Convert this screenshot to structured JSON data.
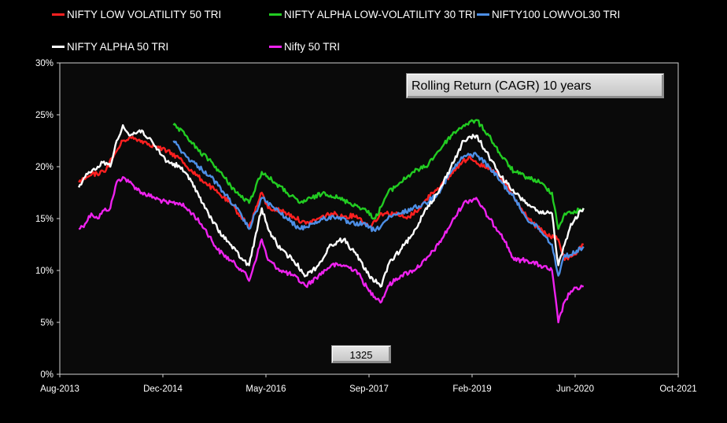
{
  "legend": [
    {
      "label": "NIFTY LOW VOLATILITY 50 TRI",
      "color": "#ff2020"
    },
    {
      "label": "NIFTY ALPHA LOW-VOLATILITY 30 TRI",
      "color": "#22cc22"
    },
    {
      "label": "NIFTY100 LOWVOL30 TRI",
      "color": "#4d8fe6"
    },
    {
      "label": "NIFTY ALPHA 50 TRI",
      "color": "#ffffff"
    },
    {
      "label": "Nifty 50 TRI",
      "color": "#ee22ee"
    }
  ],
  "title_box": "Rolling Return (CAGR) 10 years",
  "counter_box": "1325",
  "chart_data": {
    "type": "line",
    "title": "Rolling Return (CAGR) 10 years",
    "xlabel": "",
    "ylabel": "",
    "x_ticks": [
      "Aug-2013",
      "Dec-2014",
      "May-2016",
      "Sep-2017",
      "Feb-2019",
      "Jun-2020",
      "Oct-2021"
    ],
    "x_range": [
      "2013-08",
      "2021-10"
    ],
    "y_ticks": [
      "0%",
      "5%",
      "10%",
      "15%",
      "20%",
      "25%",
      "30%"
    ],
    "ylim": [
      0,
      30
    ],
    "grid": false,
    "legend_position": "top",
    "series": [
      {
        "name": "NIFTY LOW VOLATILITY 50 TRI",
        "color": "#ff2020",
        "x": [
          "2013-11",
          "2013-12",
          "2014-01",
          "2014-03",
          "2014-05",
          "2014-06",
          "2014-07",
          "2014-09",
          "2014-11",
          "2015-01",
          "2015-03",
          "2015-05",
          "2015-07",
          "2015-09",
          "2015-11",
          "2016-01",
          "2016-02",
          "2016-04",
          "2016-05",
          "2016-07",
          "2016-09",
          "2016-11",
          "2017-01",
          "2017-03",
          "2017-05",
          "2017-07",
          "2017-09",
          "2017-11",
          "2018-01",
          "2018-03",
          "2018-05",
          "2018-07",
          "2018-09",
          "2018-11",
          "2019-01",
          "2019-03",
          "2019-05",
          "2019-07",
          "2019-09",
          "2019-11",
          "2020-01",
          "2020-03",
          "2020-04",
          "2020-06",
          "2020-07"
        ],
        "y": [
          18.5,
          18.8,
          19.2,
          19.5,
          21.5,
          22.5,
          22.8,
          22.5,
          22.0,
          21.5,
          20.8,
          19.5,
          18.5,
          17.5,
          16.5,
          15.0,
          14.2,
          17.5,
          16.0,
          15.8,
          15.2,
          14.5,
          15.0,
          15.5,
          15.2,
          15.3,
          14.2,
          15.5,
          15.5,
          15.0,
          16.0,
          17.5,
          18.5,
          20.0,
          21.0,
          20.0,
          19.5,
          18.0,
          16.0,
          14.5,
          13.5,
          13.0,
          11.0,
          11.8,
          12.5
        ]
      },
      {
        "name": "NIFTY ALPHA LOW-VOLATILITY 30 TRI",
        "color": "#22cc22",
        "x": [
          "2015-02",
          "2015-04",
          "2015-06",
          "2015-08",
          "2015-10",
          "2015-12",
          "2016-02",
          "2016-04",
          "2016-06",
          "2016-08",
          "2016-10",
          "2016-12",
          "2017-02",
          "2017-04",
          "2017-06",
          "2017-08",
          "2017-10",
          "2017-12",
          "2018-02",
          "2018-04",
          "2018-06",
          "2018-08",
          "2018-10",
          "2018-12",
          "2019-02",
          "2019-04",
          "2019-06",
          "2019-08",
          "2019-10",
          "2019-12",
          "2020-02",
          "2020-03",
          "2020-04",
          "2020-05",
          "2020-07"
        ],
        "y": [
          24.0,
          23.0,
          21.5,
          20.5,
          19.0,
          17.5,
          16.5,
          19.5,
          18.5,
          17.5,
          16.5,
          17.0,
          17.5,
          17.0,
          16.5,
          16.0,
          15.0,
          17.5,
          18.5,
          19.5,
          20.0,
          21.5,
          23.0,
          24.0,
          24.5,
          23.0,
          21.0,
          19.5,
          19.0,
          18.5,
          17.5,
          14.0,
          15.5,
          15.5,
          16.0
        ]
      },
      {
        "name": "NIFTY100 LOWVOL30 TRI",
        "color": "#4d8fe6",
        "x": [
          "2015-02",
          "2015-04",
          "2015-06",
          "2015-08",
          "2015-10",
          "2015-12",
          "2016-02",
          "2016-04",
          "2016-06",
          "2016-08",
          "2016-10",
          "2016-12",
          "2017-02",
          "2017-04",
          "2017-06",
          "2017-08",
          "2017-10",
          "2017-12",
          "2018-02",
          "2018-04",
          "2018-06",
          "2018-08",
          "2018-10",
          "2018-12",
          "2019-02",
          "2019-04",
          "2019-06",
          "2019-08",
          "2019-10",
          "2019-12",
          "2020-02",
          "2020-03",
          "2020-04",
          "2020-05",
          "2020-07"
        ],
        "y": [
          22.5,
          21.0,
          20.0,
          19.0,
          17.5,
          16.0,
          14.0,
          17.0,
          16.0,
          15.0,
          14.0,
          14.5,
          15.0,
          15.2,
          14.5,
          14.5,
          13.8,
          15.0,
          15.5,
          16.0,
          16.5,
          17.5,
          19.5,
          21.0,
          21.2,
          20.0,
          18.5,
          17.0,
          15.0,
          14.0,
          12.5,
          9.5,
          11.5,
          11.5,
          12.3
        ]
      },
      {
        "name": "NIFTY ALPHA 50 TRI",
        "color": "#ffffff",
        "x": [
          "2013-11",
          "2013-12",
          "2014-01",
          "2014-02",
          "2014-03",
          "2014-04",
          "2014-05",
          "2014-06",
          "2014-07",
          "2014-09",
          "2014-11",
          "2015-01",
          "2015-03",
          "2015-05",
          "2015-07",
          "2015-09",
          "2015-11",
          "2016-01",
          "2016-02",
          "2016-04",
          "2016-05",
          "2016-07",
          "2016-09",
          "2016-11",
          "2017-01",
          "2017-03",
          "2017-05",
          "2017-07",
          "2017-09",
          "2017-11",
          "2017-12",
          "2018-02",
          "2018-04",
          "2018-06",
          "2018-08",
          "2018-10",
          "2018-12",
          "2019-02",
          "2019-04",
          "2019-06",
          "2019-08",
          "2019-10",
          "2019-12",
          "2020-02",
          "2020-03",
          "2020-04",
          "2020-05",
          "2020-07"
        ],
        "y": [
          18.0,
          19.0,
          19.5,
          20.0,
          20.5,
          20.0,
          22.5,
          24.0,
          23.0,
          23.5,
          22.0,
          20.5,
          20.0,
          18.5,
          16.0,
          14.0,
          12.5,
          11.0,
          10.5,
          16.0,
          14.0,
          12.0,
          11.0,
          9.5,
          10.5,
          12.5,
          13.0,
          11.5,
          9.5,
          8.5,
          10.5,
          12.0,
          13.5,
          16.0,
          17.5,
          20.0,
          22.5,
          23.0,
          21.0,
          19.0,
          17.5,
          16.5,
          15.5,
          15.5,
          10.5,
          12.5,
          14.5,
          16.0
        ]
      },
      {
        "name": "Nifty 50 TRI",
        "color": "#ee22ee",
        "x": [
          "2013-11",
          "2013-12",
          "2014-01",
          "2014-02",
          "2014-03",
          "2014-04",
          "2014-05",
          "2014-06",
          "2014-07",
          "2014-09",
          "2014-11",
          "2015-01",
          "2015-03",
          "2015-05",
          "2015-07",
          "2015-09",
          "2015-11",
          "2016-01",
          "2016-02",
          "2016-04",
          "2016-05",
          "2016-07",
          "2016-09",
          "2016-11",
          "2017-01",
          "2017-03",
          "2017-05",
          "2017-07",
          "2017-09",
          "2017-11",
          "2017-12",
          "2018-02",
          "2018-04",
          "2018-06",
          "2018-08",
          "2018-10",
          "2018-12",
          "2019-02",
          "2019-04",
          "2019-06",
          "2019-08",
          "2019-10",
          "2019-12",
          "2020-02",
          "2020-03",
          "2020-04",
          "2020-05",
          "2020-07"
        ],
        "y": [
          14.0,
          14.5,
          15.5,
          15.0,
          15.8,
          16.0,
          18.5,
          19.0,
          18.5,
          17.5,
          17.0,
          16.5,
          16.5,
          15.5,
          14.0,
          12.0,
          11.0,
          10.0,
          9.0,
          13.0,
          11.0,
          10.0,
          9.5,
          8.5,
          9.5,
          10.5,
          10.5,
          10.0,
          8.0,
          7.0,
          8.5,
          9.5,
          10.0,
          11.0,
          12.5,
          14.5,
          16.5,
          17.0,
          15.0,
          13.5,
          11.0,
          11.0,
          10.5,
          10.0,
          5.0,
          7.0,
          8.0,
          8.5
        ]
      }
    ]
  }
}
